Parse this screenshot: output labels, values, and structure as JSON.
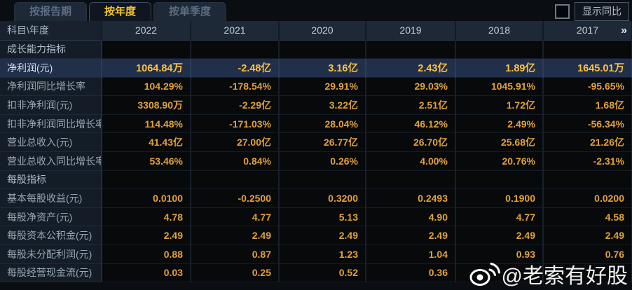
{
  "tabs": [
    {
      "label": "按报告期",
      "active": false
    },
    {
      "label": "按年度",
      "active": true
    },
    {
      "label": "按单季度",
      "active": false
    }
  ],
  "controls": {
    "show_yoy_label": "显示同比",
    "checkbox_checked": false
  },
  "table": {
    "corner_label": "科目\\年度",
    "years": [
      "2022",
      "2021",
      "2020",
      "2019",
      "2018",
      "2017"
    ],
    "more_icon": "»",
    "rows": [
      {
        "type": "section",
        "label": "成长能力指标",
        "values": [
          "",
          "",
          "",
          "",
          "",
          ""
        ]
      },
      {
        "type": "data",
        "highlight": true,
        "label": "净利润(元)",
        "values": [
          "1064.84万",
          "-2.48亿",
          "3.16亿",
          "2.43亿",
          "1.89亿",
          "1645.01万"
        ]
      },
      {
        "type": "data",
        "label": "净利润同比增长率",
        "values": [
          "104.29%",
          "-178.54%",
          "29.91%",
          "29.03%",
          "1045.91%",
          "-95.65%"
        ]
      },
      {
        "type": "data",
        "label": "扣非净利润(元)",
        "values": [
          "3308.90万",
          "-2.29亿",
          "3.22亿",
          "2.51亿",
          "1.72亿",
          "1.68亿"
        ]
      },
      {
        "type": "data",
        "label": "扣非净利润同比增长率",
        "values": [
          "114.48%",
          "-171.03%",
          "28.04%",
          "46.12%",
          "2.49%",
          "-56.34%"
        ]
      },
      {
        "type": "data",
        "label": "营业总收入(元)",
        "values": [
          "41.43亿",
          "27.00亿",
          "26.77亿",
          "26.70亿",
          "25.68亿",
          "21.26亿"
        ]
      },
      {
        "type": "data",
        "label": "营业总收入同比增长率",
        "values": [
          "53.46%",
          "0.84%",
          "0.26%",
          "4.00%",
          "20.76%",
          "-2.31%"
        ]
      },
      {
        "type": "section",
        "label": "每股指标",
        "values": [
          "",
          "",
          "",
          "",
          "",
          ""
        ]
      },
      {
        "type": "data",
        "label": "基本每股收益(元)",
        "values": [
          "0.0100",
          "-0.2500",
          "0.3200",
          "0.2493",
          "0.1900",
          "0.0200"
        ]
      },
      {
        "type": "data",
        "label": "每股净资产(元)",
        "values": [
          "4.78",
          "4.77",
          "5.13",
          "4.90",
          "4.77",
          "4.58"
        ]
      },
      {
        "type": "data",
        "label": "每股资本公积金(元)",
        "values": [
          "2.49",
          "2.49",
          "2.49",
          "2.49",
          "2.49",
          "2.49"
        ]
      },
      {
        "type": "data",
        "label": "每股未分配利润(元)",
        "values": [
          "0.88",
          "0.87",
          "1.23",
          "1.04",
          "0.93",
          "0.76"
        ]
      },
      {
        "type": "data",
        "label": "每股经营现金流(元)",
        "values": [
          "0.03",
          "0.25",
          "0.52",
          "0.36",
          "",
          ""
        ]
      }
    ]
  },
  "watermark": {
    "icon": "weibo-icon",
    "text": "@老索有好股"
  },
  "colors": {
    "value_gold": "#e2a23c",
    "highlight_value_gold": "#ffc043",
    "tab_active_text": "#f6c62d",
    "highlight_row_bg": "#20304b",
    "header_bg": "#1e2937",
    "label_col_bg": "#141c27",
    "watermark": "#ffffff"
  }
}
